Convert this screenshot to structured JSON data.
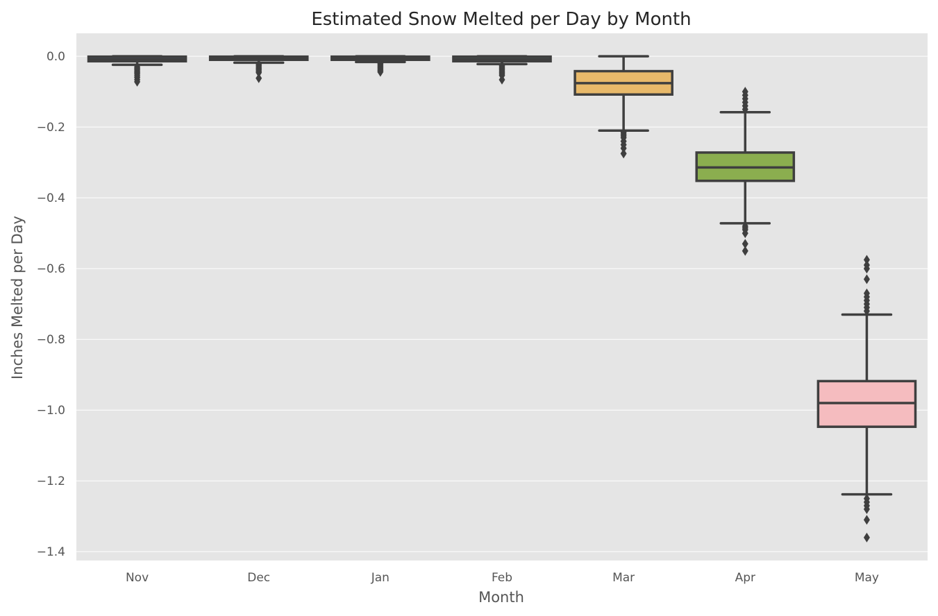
{
  "chart_data": {
    "type": "box",
    "title": "Estimated Snow Melted per Day by Month",
    "xlabel": "Month",
    "ylabel": "Inches Melted per Day",
    "ylim": [
      -1.425,
      0.065
    ],
    "yticks": [
      0.0,
      -0.2,
      -0.4,
      -0.6,
      -0.8,
      -1.0,
      -1.2,
      -1.4
    ],
    "ytick_labels": [
      "0.0",
      "−0.2",
      "−0.4",
      "−0.6",
      "−0.8",
      "−1.0",
      "−1.2",
      "−1.4"
    ],
    "grid": true,
    "legend": "none",
    "categories": [
      "Nov",
      "Dec",
      "Jan",
      "Feb",
      "Mar",
      "Apr",
      "May"
    ],
    "boxes": [
      {
        "category": "Nov",
        "whisker_low": -0.024,
        "q1": -0.014,
        "median": -0.008,
        "q3": -0.001,
        "whisker_high": 0.0,
        "color": "#5b9bd5",
        "outliers": [
          -0.03,
          -0.034,
          -0.038,
          -0.042,
          -0.046,
          -0.05,
          -0.055,
          -0.06,
          -0.066,
          -0.072
        ]
      },
      {
        "category": "Dec",
        "whisker_low": -0.018,
        "q1": -0.01,
        "median": -0.006,
        "q3": -0.001,
        "whisker_high": 0.0,
        "color": "#a6d854",
        "outliers": [
          -0.022,
          -0.026,
          -0.03,
          -0.034,
          -0.038,
          -0.042,
          -0.046,
          -0.062
        ]
      },
      {
        "category": "Jan",
        "whisker_low": -0.016,
        "q1": -0.01,
        "median": -0.006,
        "q3": -0.001,
        "whisker_high": 0.0,
        "color": "#e78ac3",
        "outliers": [
          -0.02,
          -0.024,
          -0.028,
          -0.032,
          -0.036,
          -0.04,
          -0.044
        ]
      },
      {
        "category": "Feb",
        "whisker_low": -0.022,
        "q1": -0.014,
        "median": -0.008,
        "q3": -0.001,
        "whisker_high": 0.0,
        "color": "#66c2a5",
        "outliers": [
          -0.026,
          -0.03,
          -0.034,
          -0.038,
          -0.042,
          -0.046,
          -0.05,
          -0.054,
          -0.066
        ]
      },
      {
        "category": "Mar",
        "whisker_low": -0.21,
        "q1": -0.108,
        "median": -0.076,
        "q3": -0.042,
        "whisker_high": 0.0,
        "color": "#e8b96a",
        "outliers": [
          -0.215,
          -0.22,
          -0.225,
          -0.23,
          -0.24,
          -0.25,
          -0.26,
          -0.275
        ]
      },
      {
        "category": "Apr",
        "whisker_low": -0.472,
        "q1": -0.352,
        "median": -0.314,
        "q3": -0.272,
        "whisker_high": -0.158,
        "color": "#8bae4f",
        "outliers": [
          -0.1,
          -0.11,
          -0.12,
          -0.13,
          -0.14,
          -0.15,
          -0.48,
          -0.485,
          -0.49,
          -0.5,
          -0.53,
          -0.55
        ]
      },
      {
        "category": "May",
        "whisker_low": -1.238,
        "q1": -1.047,
        "median": -0.98,
        "q3": -0.918,
        "whisker_high": -0.73,
        "color": "#f5bcbf",
        "outliers": [
          -0.575,
          -0.59,
          -0.6,
          -0.63,
          -0.67,
          -0.68,
          -0.69,
          -0.7,
          -0.71,
          -0.72,
          -1.25,
          -1.26,
          -1.27,
          -1.28,
          -1.31,
          -1.36
        ]
      }
    ]
  }
}
